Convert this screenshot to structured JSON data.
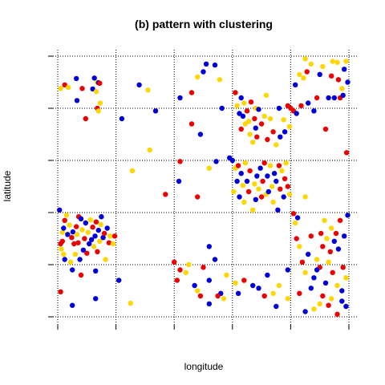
{
  "chart_data": {
    "type": "scatter",
    "title": "(b) pattern with clustering",
    "xlabel": "longitude",
    "ylabel": "latitude",
    "xlim": [
      0,
      5
    ],
    "ylim": [
      0,
      5
    ],
    "grid": true,
    "colors": {
      "blue": "#0000dd",
      "yellow": "#ffd700",
      "red": "#ee0000"
    },
    "points": [
      [
        0.05,
        4.38,
        "yellow"
      ],
      [
        0.12,
        4.45,
        "red"
      ],
      [
        0.18,
        4.4,
        "yellow"
      ],
      [
        0.32,
        4.57,
        "blue"
      ],
      [
        0.33,
        4.15,
        "blue"
      ],
      [
        0.42,
        4.38,
        "red"
      ],
      [
        0.48,
        3.8,
        "red"
      ],
      [
        0.6,
        4.37,
        "blue"
      ],
      [
        0.63,
        4.58,
        "blue"
      ],
      [
        0.66,
        4.32,
        "yellow"
      ],
      [
        0.68,
        4.5,
        "yellow"
      ],
      [
        0.7,
        4.49,
        "blue"
      ],
      [
        0.72,
        4.48,
        "red"
      ],
      [
        0.73,
        4.1,
        "yellow"
      ],
      [
        0.68,
        4.0,
        "red"
      ],
      [
        0.7,
        3.95,
        "yellow"
      ],
      [
        1.1,
        3.8,
        "blue"
      ],
      [
        0.03,
        2.05,
        "blue"
      ],
      [
        0.05,
        1.4,
        "red"
      ],
      [
        0.06,
        1.3,
        "yellow"
      ],
      [
        0.08,
        1.62,
        "yellow"
      ],
      [
        0.08,
        1.45,
        "red"
      ],
      [
        0.1,
        1.7,
        "blue"
      ],
      [
        0.1,
        1.2,
        "yellow"
      ],
      [
        0.12,
        1.85,
        "red"
      ],
      [
        0.12,
        1.1,
        "blue"
      ],
      [
        0.15,
        1.95,
        "yellow"
      ],
      [
        0.17,
        1.58,
        "blue"
      ],
      [
        0.2,
        1.76,
        "yellow"
      ],
      [
        0.22,
        1.05,
        "yellow"
      ],
      [
        0.24,
        1.52,
        "red"
      ],
      [
        0.26,
        1.63,
        "blue"
      ],
      [
        0.28,
        1.4,
        "red"
      ],
      [
        0.3,
        1.2,
        "yellow"
      ],
      [
        0.32,
        1.73,
        "red"
      ],
      [
        0.33,
        1.58,
        "yellow"
      ],
      [
        0.35,
        1.42,
        "red"
      ],
      [
        0.36,
        1.92,
        "red"
      ],
      [
        0.38,
        1.1,
        "blue"
      ],
      [
        0.4,
        1.88,
        "blue"
      ],
      [
        0.42,
        1.67,
        "yellow"
      ],
      [
        0.44,
        1.28,
        "blue"
      ],
      [
        0.46,
        1.5,
        "red"
      ],
      [
        0.48,
        1.8,
        "blue"
      ],
      [
        0.5,
        1.22,
        "red"
      ],
      [
        0.52,
        1.62,
        "yellow"
      ],
      [
        0.54,
        1.4,
        "blue"
      ],
      [
        0.56,
        1.86,
        "yellow"
      ],
      [
        0.58,
        1.48,
        "blue"
      ],
      [
        0.6,
        1.72,
        "red"
      ],
      [
        0.62,
        1.35,
        "yellow"
      ],
      [
        0.64,
        1.55,
        "blue"
      ],
      [
        0.66,
        1.82,
        "red"
      ],
      [
        0.68,
        1.25,
        "red"
      ],
      [
        0.7,
        1.66,
        "blue"
      ],
      [
        0.72,
        1.45,
        "yellow"
      ],
      [
        0.74,
        1.77,
        "yellow"
      ],
      [
        0.75,
        1.92,
        "blue"
      ],
      [
        0.78,
        1.52,
        "blue"
      ],
      [
        0.8,
        1.6,
        "red"
      ],
      [
        0.82,
        1.1,
        "yellow"
      ],
      [
        0.85,
        1.7,
        "blue"
      ],
      [
        0.88,
        1.42,
        "red"
      ],
      [
        0.9,
        1.55,
        "yellow"
      ],
      [
        0.25,
        0.9,
        "blue"
      ],
      [
        0.4,
        0.8,
        "red"
      ],
      [
        0.65,
        0.88,
        "blue"
      ],
      [
        0.95,
        1.4,
        "yellow"
      ],
      [
        0.98,
        1.55,
        "red"
      ],
      [
        0.05,
        0.48,
        "red"
      ],
      [
        0.25,
        0.22,
        "blue"
      ],
      [
        0.65,
        0.35,
        "blue"
      ],
      [
        1.05,
        0.7,
        "blue"
      ],
      [
        1.25,
        0.26,
        "yellow"
      ],
      [
        1.4,
        4.45,
        "blue"
      ],
      [
        1.55,
        4.35,
        "yellow"
      ],
      [
        1.68,
        3.95,
        "blue"
      ],
      [
        1.58,
        3.2,
        "yellow"
      ],
      [
        1.28,
        2.8,
        "yellow"
      ],
      [
        1.85,
        2.35,
        "red"
      ],
      [
        2.08,
        2.6,
        "blue"
      ],
      [
        2.1,
        2.98,
        "red"
      ],
      [
        2.3,
        4.3,
        "red"
      ],
      [
        2.1,
        4.2,
        "blue"
      ],
      [
        2.4,
        4.6,
        "yellow"
      ],
      [
        2.5,
        4.7,
        "blue"
      ],
      [
        2.55,
        4.85,
        "blue"
      ],
      [
        2.7,
        4.83,
        "blue"
      ],
      [
        2.78,
        4.55,
        "yellow"
      ],
      [
        2.82,
        4.0,
        "blue"
      ],
      [
        2.45,
        3.5,
        "blue"
      ],
      [
        2.3,
        3.7,
        "red"
      ],
      [
        2.72,
        2.98,
        "blue"
      ],
      [
        2.6,
        2.85,
        "yellow"
      ],
      [
        2.95,
        3.05,
        "blue"
      ],
      [
        3.4,
        4.0,
        "yellow"
      ],
      [
        2.4,
        2.3,
        "red"
      ],
      [
        2.6,
        1.35,
        "blue"
      ],
      [
        2.7,
        1.1,
        "blue"
      ],
      [
        2.5,
        0.95,
        "red"
      ],
      [
        2.1,
        0.9,
        "red"
      ],
      [
        2.2,
        0.85,
        "yellow"
      ],
      [
        2.25,
        1.0,
        "yellow"
      ],
      [
        2.0,
        1.05,
        "red"
      ],
      [
        2.05,
        0.7,
        "red"
      ],
      [
        2.35,
        0.6,
        "blue"
      ],
      [
        2.4,
        0.5,
        "yellow"
      ],
      [
        2.45,
        0.4,
        "red"
      ],
      [
        2.6,
        0.25,
        "blue"
      ],
      [
        2.85,
        0.35,
        "yellow"
      ],
      [
        2.8,
        0.45,
        "blue"
      ],
      [
        2.9,
        0.8,
        "yellow"
      ],
      [
        2.75,
        0.4,
        "red"
      ],
      [
        2.6,
        0.7,
        "blue"
      ],
      [
        3.05,
        4.3,
        "red"
      ],
      [
        3.08,
        4.05,
        "yellow"
      ],
      [
        3.12,
        3.9,
        "blue"
      ],
      [
        3.15,
        3.6,
        "red"
      ],
      [
        3.15,
        4.2,
        "blue"
      ],
      [
        3.18,
        3.85,
        "blue"
      ],
      [
        3.2,
        4.1,
        "yellow"
      ],
      [
        3.22,
        3.7,
        "yellow"
      ],
      [
        3.25,
        3.95,
        "red"
      ],
      [
        3.28,
        3.75,
        "yellow"
      ],
      [
        3.3,
        3.5,
        "yellow"
      ],
      [
        3.32,
        4.12,
        "red"
      ],
      [
        3.35,
        3.35,
        "yellow"
      ],
      [
        3.38,
        3.8,
        "red"
      ],
      [
        3.4,
        3.62,
        "blue"
      ],
      [
        3.42,
        3.45,
        "red"
      ],
      [
        3.45,
        3.98,
        "blue"
      ],
      [
        3.5,
        3.7,
        "red"
      ],
      [
        3.55,
        3.85,
        "yellow"
      ],
      [
        3.58,
        4.25,
        "yellow"
      ],
      [
        3.6,
        3.4,
        "red"
      ],
      [
        3.65,
        3.8,
        "yellow"
      ],
      [
        3.7,
        3.55,
        "red"
      ],
      [
        3.75,
        3.3,
        "yellow"
      ],
      [
        3.8,
        4.0,
        "blue"
      ],
      [
        3.82,
        3.45,
        "blue"
      ],
      [
        3.88,
        3.78,
        "yellow"
      ],
      [
        3.9,
        3.55,
        "blue"
      ],
      [
        3.95,
        4.05,
        "red"
      ],
      [
        3.98,
        3.65,
        "yellow"
      ],
      [
        3.0,
        3.0,
        "blue"
      ],
      [
        3.02,
        2.4,
        "yellow"
      ],
      [
        3.05,
        2.85,
        "yellow"
      ],
      [
        3.08,
        2.6,
        "blue"
      ],
      [
        3.1,
        2.9,
        "red"
      ],
      [
        3.12,
        2.3,
        "blue"
      ],
      [
        3.15,
        2.75,
        "blue"
      ],
      [
        3.18,
        2.52,
        "yellow"
      ],
      [
        3.2,
        2.2,
        "yellow"
      ],
      [
        3.22,
        2.95,
        "yellow"
      ],
      [
        3.25,
        2.6,
        "blue"
      ],
      [
        3.28,
        2.4,
        "red"
      ],
      [
        3.3,
        2.8,
        "red"
      ],
      [
        3.35,
        2.05,
        "yellow"
      ],
      [
        3.38,
        2.55,
        "yellow"
      ],
      [
        3.4,
        2.25,
        "blue"
      ],
      [
        3.42,
        2.7,
        "blue"
      ],
      [
        3.45,
        2.45,
        "yellow"
      ],
      [
        3.48,
        2.85,
        "blue"
      ],
      [
        3.5,
        2.3,
        "red"
      ],
      [
        3.52,
        2.6,
        "red"
      ],
      [
        3.55,
        2.95,
        "red"
      ],
      [
        3.58,
        2.35,
        "yellow"
      ],
      [
        3.6,
        2.7,
        "blue"
      ],
      [
        3.62,
        2.4,
        "blue"
      ],
      [
        3.65,
        2.9,
        "yellow"
      ],
      [
        3.68,
        2.5,
        "yellow"
      ],
      [
        3.7,
        2.2,
        "yellow"
      ],
      [
        3.72,
        2.75,
        "blue"
      ],
      [
        3.75,
        2.6,
        "blue"
      ],
      [
        3.78,
        2.05,
        "blue"
      ],
      [
        3.8,
        2.9,
        "red"
      ],
      [
        3.82,
        2.45,
        "red"
      ],
      [
        3.85,
        2.8,
        "yellow"
      ],
      [
        3.88,
        2.3,
        "blue"
      ],
      [
        3.9,
        2.65,
        "red"
      ],
      [
        3.92,
        2.95,
        "yellow"
      ],
      [
        3.95,
        2.5,
        "red"
      ],
      [
        3.98,
        2.35,
        "yellow"
      ],
      [
        4.25,
        2.3,
        "yellow"
      ],
      [
        3.05,
        0.65,
        "yellow"
      ],
      [
        3.1,
        0.45,
        "blue"
      ],
      [
        3.2,
        0.7,
        "red"
      ],
      [
        3.35,
        0.6,
        "blue"
      ],
      [
        3.45,
        0.55,
        "blue"
      ],
      [
        3.55,
        0.4,
        "red"
      ],
      [
        3.6,
        0.8,
        "blue"
      ],
      [
        3.7,
        0.45,
        "yellow"
      ],
      [
        3.75,
        0.2,
        "blue"
      ],
      [
        3.8,
        0.6,
        "yellow"
      ],
      [
        3.95,
        0.9,
        "blue"
      ],
      [
        3.95,
        0.35,
        "yellow"
      ],
      [
        4.0,
        4.0,
        "red"
      ],
      [
        4.05,
        3.95,
        "red"
      ],
      [
        4.08,
        4.45,
        "blue"
      ],
      [
        4.1,
        3.9,
        "blue"
      ],
      [
        4.15,
        4.65,
        "yellow"
      ],
      [
        4.18,
        4.05,
        "red"
      ],
      [
        4.22,
        4.58,
        "yellow"
      ],
      [
        4.25,
        4.95,
        "yellow"
      ],
      [
        4.28,
        4.7,
        "red"
      ],
      [
        4.3,
        4.1,
        "blue"
      ],
      [
        4.35,
        4.85,
        "yellow"
      ],
      [
        4.4,
        3.95,
        "blue"
      ],
      [
        4.45,
        4.2,
        "red"
      ],
      [
        4.5,
        4.65,
        "blue"
      ],
      [
        4.55,
        4.8,
        "yellow"
      ],
      [
        4.6,
        3.6,
        "red"
      ],
      [
        4.65,
        4.2,
        "blue"
      ],
      [
        4.7,
        4.62,
        "red"
      ],
      [
        4.72,
        4.9,
        "yellow"
      ],
      [
        4.75,
        4.2,
        "blue"
      ],
      [
        4.8,
        4.88,
        "yellow"
      ],
      [
        4.82,
        4.55,
        "red"
      ],
      [
        4.85,
        4.2,
        "red"
      ],
      [
        4.88,
        4.38,
        "yellow"
      ],
      [
        4.9,
        4.25,
        "blue"
      ],
      [
        4.92,
        4.75,
        "blue"
      ],
      [
        4.95,
        4.9,
        "yellow"
      ],
      [
        4.96,
        3.15,
        "red"
      ],
      [
        4.98,
        4.5,
        "blue"
      ],
      [
        4.05,
        1.98,
        "red"
      ],
      [
        4.08,
        1.8,
        "yellow"
      ],
      [
        4.1,
        1.5,
        "red"
      ],
      [
        4.12,
        1.9,
        "blue"
      ],
      [
        4.15,
        1.35,
        "yellow"
      ],
      [
        4.2,
        1.05,
        "red"
      ],
      [
        4.25,
        0.85,
        "yellow"
      ],
      [
        4.3,
        1.2,
        "blue"
      ],
      [
        4.35,
        1.55,
        "red"
      ],
      [
        4.4,
        0.75,
        "blue"
      ],
      [
        4.45,
        1.1,
        "yellow"
      ],
      [
        4.5,
        0.95,
        "red"
      ],
      [
        4.52,
        1.6,
        "red"
      ],
      [
        4.55,
        1.35,
        "red"
      ],
      [
        4.58,
        1.85,
        "yellow"
      ],
      [
        4.6,
        0.65,
        "blue"
      ],
      [
        4.62,
        1.5,
        "yellow"
      ],
      [
        4.65,
        1.05,
        "yellow"
      ],
      [
        4.68,
        1.25,
        "red"
      ],
      [
        4.7,
        1.7,
        "yellow"
      ],
      [
        4.72,
        0.85,
        "red"
      ],
      [
        4.75,
        1.45,
        "blue"
      ],
      [
        4.78,
        1.6,
        "red"
      ],
      [
        4.8,
        0.6,
        "yellow"
      ],
      [
        4.82,
        1.3,
        "blue"
      ],
      [
        4.85,
        1.85,
        "red"
      ],
      [
        4.88,
        0.5,
        "blue"
      ],
      [
        4.9,
        0.95,
        "red"
      ],
      [
        4.92,
        1.55,
        "blue"
      ],
      [
        4.95,
        0.75,
        "yellow"
      ],
      [
        4.98,
        1.95,
        "blue"
      ],
      [
        4.65,
        0.22,
        "red"
      ],
      [
        4.8,
        0.05,
        "red"
      ],
      [
        4.88,
        0.3,
        "blue"
      ],
      [
        4.95,
        0.2,
        "blue"
      ],
      [
        4.25,
        0.1,
        "blue"
      ],
      [
        4.4,
        0.15,
        "yellow"
      ],
      [
        4.55,
        0.4,
        "red"
      ],
      [
        4.7,
        0.35,
        "yellow"
      ],
      [
        4.35,
        0.55,
        "blue"
      ],
      [
        4.15,
        0.45,
        "red"
      ],
      [
        4.5,
        0.25,
        "yellow"
      ],
      [
        4.45,
        0.9,
        "blue"
      ]
    ]
  }
}
